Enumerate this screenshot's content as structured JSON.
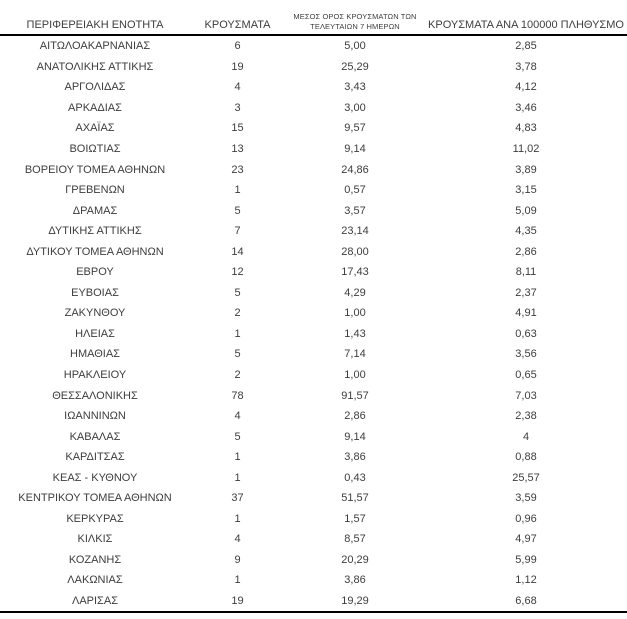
{
  "colors": {
    "background": "#ffffff",
    "text": "#3d3d3d",
    "rule": "#000000"
  },
  "table": {
    "columns": {
      "region": {
        "label": "ΠΕΡΙΦΕΡΕΙΑΚΗ ΕΝΟΤΗΤΑ"
      },
      "cases": {
        "label": "ΚΡΟΥΣΜΑΤΑ"
      },
      "avg7": {
        "label_line1": "ΜΕΣΟΣ ΟΡΟΣ ΚΡΟΥΣΜΑΤΩΝ ΤΩΝ",
        "label_line2": "ΤΕΛΕΥΤΑΙΩΝ 7 ΗΜΕΡΩΝ"
      },
      "per100k": {
        "label": "ΚΡΟΥΣΜΑΤΑ ΑΝΑ 100000 ΠΛΗΘΥΣΜΟ"
      }
    },
    "rows": [
      {
        "region": "ΑΙΤΩΛΟΑΚΑΡΝΑΝΙΑΣ",
        "cases": "6",
        "avg7": "5,00",
        "per100k": "2,85"
      },
      {
        "region": "ΑΝΑΤΟΛΙΚΗΣ ΑΤΤΙΚΗΣ",
        "cases": "19",
        "avg7": "25,29",
        "per100k": "3,78"
      },
      {
        "region": "ΑΡΓΟΛΙΔΑΣ",
        "cases": "4",
        "avg7": "3,43",
        "per100k": "4,12"
      },
      {
        "region": "ΑΡΚΑΔΙΑΣ",
        "cases": "3",
        "avg7": "3,00",
        "per100k": "3,46"
      },
      {
        "region": "ΑΧΑΪΑΣ",
        "cases": "15",
        "avg7": "9,57",
        "per100k": "4,83"
      },
      {
        "region": "ΒΟΙΩΤΙΑΣ",
        "cases": "13",
        "avg7": "9,14",
        "per100k": "11,02"
      },
      {
        "region": "ΒΟΡΕΙΟΥ ΤΟΜΕΑ ΑΘΗΝΩΝ",
        "cases": "23",
        "avg7": "24,86",
        "per100k": "3,89"
      },
      {
        "region": "ΓΡΕΒΕΝΩΝ",
        "cases": "1",
        "avg7": "0,57",
        "per100k": "3,15"
      },
      {
        "region": "ΔΡΑΜΑΣ",
        "cases": "5",
        "avg7": "3,57",
        "per100k": "5,09"
      },
      {
        "region": "ΔΥΤΙΚΗΣ ΑΤΤΙΚΗΣ",
        "cases": "7",
        "avg7": "23,14",
        "per100k": "4,35"
      },
      {
        "region": "ΔΥΤΙΚΟΥ ΤΟΜΕΑ ΑΘΗΝΩΝ",
        "cases": "14",
        "avg7": "28,00",
        "per100k": "2,86"
      },
      {
        "region": "ΕΒΡΟΥ",
        "cases": "12",
        "avg7": "17,43",
        "per100k": "8,11"
      },
      {
        "region": "ΕΥΒΟΙΑΣ",
        "cases": "5",
        "avg7": "4,29",
        "per100k": "2,37"
      },
      {
        "region": "ΖΑΚΥΝΘΟΥ",
        "cases": "2",
        "avg7": "1,00",
        "per100k": "4,91"
      },
      {
        "region": "ΗΛΕΙΑΣ",
        "cases": "1",
        "avg7": "1,43",
        "per100k": "0,63"
      },
      {
        "region": "ΗΜΑΘΙΑΣ",
        "cases": "5",
        "avg7": "7,14",
        "per100k": "3,56"
      },
      {
        "region": "ΗΡΑΚΛΕΙΟΥ",
        "cases": "2",
        "avg7": "1,00",
        "per100k": "0,65"
      },
      {
        "region": "ΘΕΣΣΑΛΟΝΙΚΗΣ",
        "cases": "78",
        "avg7": "91,57",
        "per100k": "7,03"
      },
      {
        "region": "ΙΩΑΝΝΙΝΩΝ",
        "cases": "4",
        "avg7": "2,86",
        "per100k": "2,38"
      },
      {
        "region": "ΚΑΒΑΛΑΣ",
        "cases": "5",
        "avg7": "9,14",
        "per100k": "4"
      },
      {
        "region": "ΚΑΡΔΙΤΣΑΣ",
        "cases": "1",
        "avg7": "3,86",
        "per100k": "0,88"
      },
      {
        "region": "ΚΕΑΣ - ΚΥΘΝΟΥ",
        "cases": "1",
        "avg7": "0,43",
        "per100k": "25,57"
      },
      {
        "region": "ΚΕΝΤΡΙΚΟΥ ΤΟΜΕΑ ΑΘΗΝΩΝ",
        "cases": "37",
        "avg7": "51,57",
        "per100k": "3,59"
      },
      {
        "region": "ΚΕΡΚΥΡΑΣ",
        "cases": "1",
        "avg7": "1,57",
        "per100k": "0,96"
      },
      {
        "region": "ΚΙΛΚΙΣ",
        "cases": "4",
        "avg7": "8,57",
        "per100k": "4,97"
      },
      {
        "region": "ΚΟΖΑΝΗΣ",
        "cases": "9",
        "avg7": "20,29",
        "per100k": "5,99"
      },
      {
        "region": "ΛΑΚΩΝΙΑΣ",
        "cases": "1",
        "avg7": "3,86",
        "per100k": "1,12"
      },
      {
        "region": "ΛΑΡΙΣΑΣ",
        "cases": "19",
        "avg7": "19,29",
        "per100k": "6,68"
      }
    ]
  }
}
